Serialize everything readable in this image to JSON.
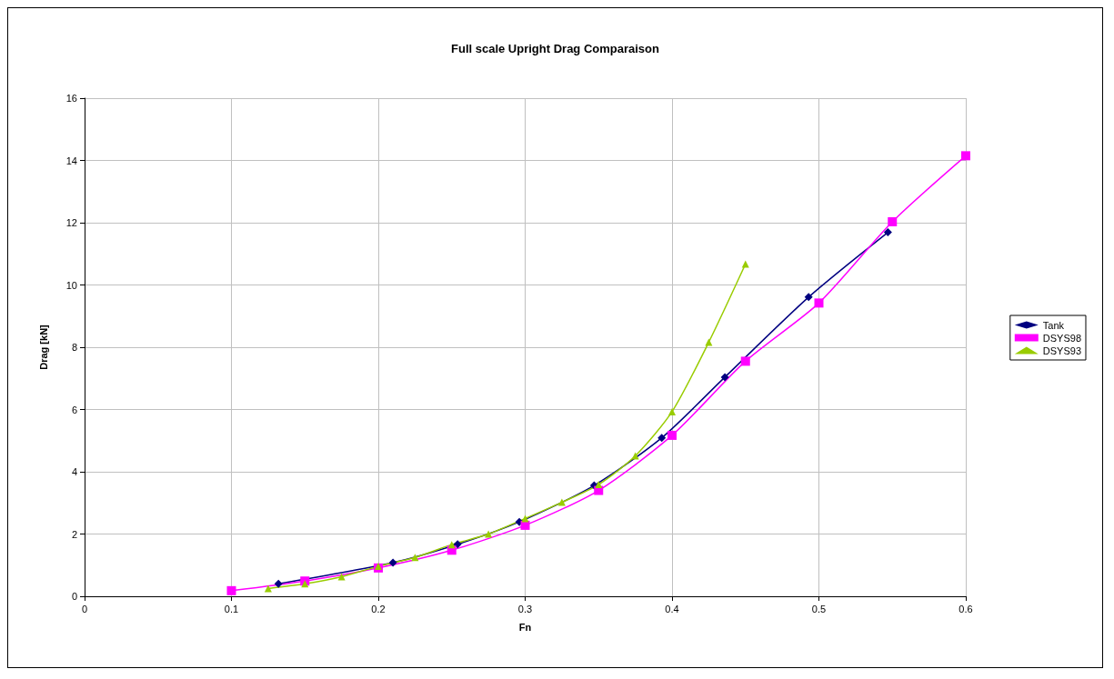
{
  "chart_data": {
    "type": "line",
    "title": "Full scale Upright Drag Comparaison",
    "xlabel": "Fn",
    "ylabel": "Drag [kN]",
    "xlim": [
      0,
      0.6
    ],
    "xticks": [
      0,
      0.1,
      0.2,
      0.3,
      0.4,
      0.5,
      0.6
    ],
    "ylim": [
      0,
      16
    ],
    "yticks": [
      0,
      2,
      4,
      6,
      8,
      10,
      12,
      14,
      16
    ],
    "grid": true,
    "legend": "right",
    "series": [
      {
        "name": "Tank",
        "color": "#000080",
        "marker": "diamond",
        "x": [
          0.132,
          0.21,
          0.254,
          0.296,
          0.347,
          0.393,
          0.436,
          0.493,
          0.547
        ],
        "values": [
          0.4,
          1.08,
          1.67,
          2.39,
          3.56,
          5.09,
          7.04,
          9.61,
          11.69
        ]
      },
      {
        "name": "DSYS98",
        "color": "#ff00ff",
        "marker": "square",
        "x": [
          0.1,
          0.15,
          0.2,
          0.25,
          0.3,
          0.35,
          0.4,
          0.45,
          0.5,
          0.55,
          0.6
        ],
        "values": [
          0.18,
          0.49,
          0.91,
          1.48,
          2.28,
          3.4,
          5.17,
          7.55,
          9.42,
          12.03,
          14.15
        ]
      },
      {
        "name": "DSYS93",
        "color": "#99cc00",
        "marker": "triangle",
        "x": [
          0.125,
          0.15,
          0.175,
          0.2,
          0.225,
          0.25,
          0.275,
          0.3,
          0.325,
          0.35,
          0.375,
          0.4,
          0.425,
          0.45
        ],
        "values": [
          0.25,
          0.4,
          0.63,
          0.96,
          1.25,
          1.66,
          2.0,
          2.5,
          3.02,
          3.59,
          4.51,
          5.93,
          8.16,
          10.67
        ]
      }
    ]
  }
}
